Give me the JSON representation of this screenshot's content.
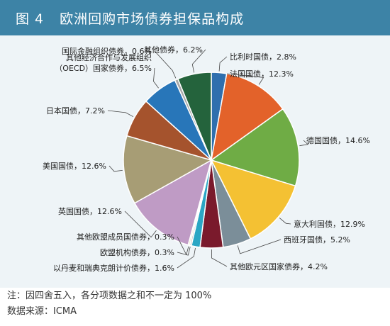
{
  "header": {
    "figure_label": "图 4",
    "title": "欧洲回购市场债券担保品构成"
  },
  "footer": {
    "note": "注：因四舍五入，各分项数据之和不一定为 100%",
    "source": "数据来源：ICMA"
  },
  "chart_data": {
    "type": "pie",
    "start": "12 o'clock",
    "direction": "clockwise",
    "slices": [
      {
        "label": "比利时国债，2.8%",
        "value": 2.8,
        "color": "#2f6fae"
      },
      {
        "label": "法国国债，12.3%",
        "value": 12.3,
        "color": "#e3622a"
      },
      {
        "label": "德国国债，14.6%",
        "value": 14.6,
        "color": "#6fac45"
      },
      {
        "label": "意大利国债，12.9%",
        "value": 12.9,
        "color": "#f4c133"
      },
      {
        "label": "西班牙国债，5.2%",
        "value": 5.2,
        "color": "#7b8e99"
      },
      {
        "label": "其他欧元区国家债券，4.2%",
        "value": 4.2,
        "color": "#7a1a2c"
      },
      {
        "label": "以丹麦和瑞典克朗计价债券，1.6%",
        "value": 1.6,
        "color": "#2aa6c4"
      },
      {
        "label": "欧盟机构债券，0.3%",
        "value": 0.3,
        "color": "#b9b9b9"
      },
      {
        "label": "其他欧盟成员国债券，0.3%",
        "value": 0.3,
        "color": "#e9e4c9"
      },
      {
        "label": "英国国债，12.6%",
        "value": 12.6,
        "color": "#bf9bc5"
      },
      {
        "label": "美国国债，12.6%",
        "value": 12.6,
        "color": "#a79d75"
      },
      {
        "label": "日本国债，7.2%",
        "value": 7.2,
        "color": "#a5532d"
      },
      {
        "label": "其他经济合作与发展组织（OECD）国家债券，6.5%",
        "value": 6.5,
        "color": "#2876b9"
      },
      {
        "label": "国际金融组织债券，0.6%",
        "value": 0.6,
        "color": "#a8a8a8"
      },
      {
        "label": "其他债券，6.2%",
        "value": 6.2,
        "color": "#24633c"
      }
    ]
  }
}
